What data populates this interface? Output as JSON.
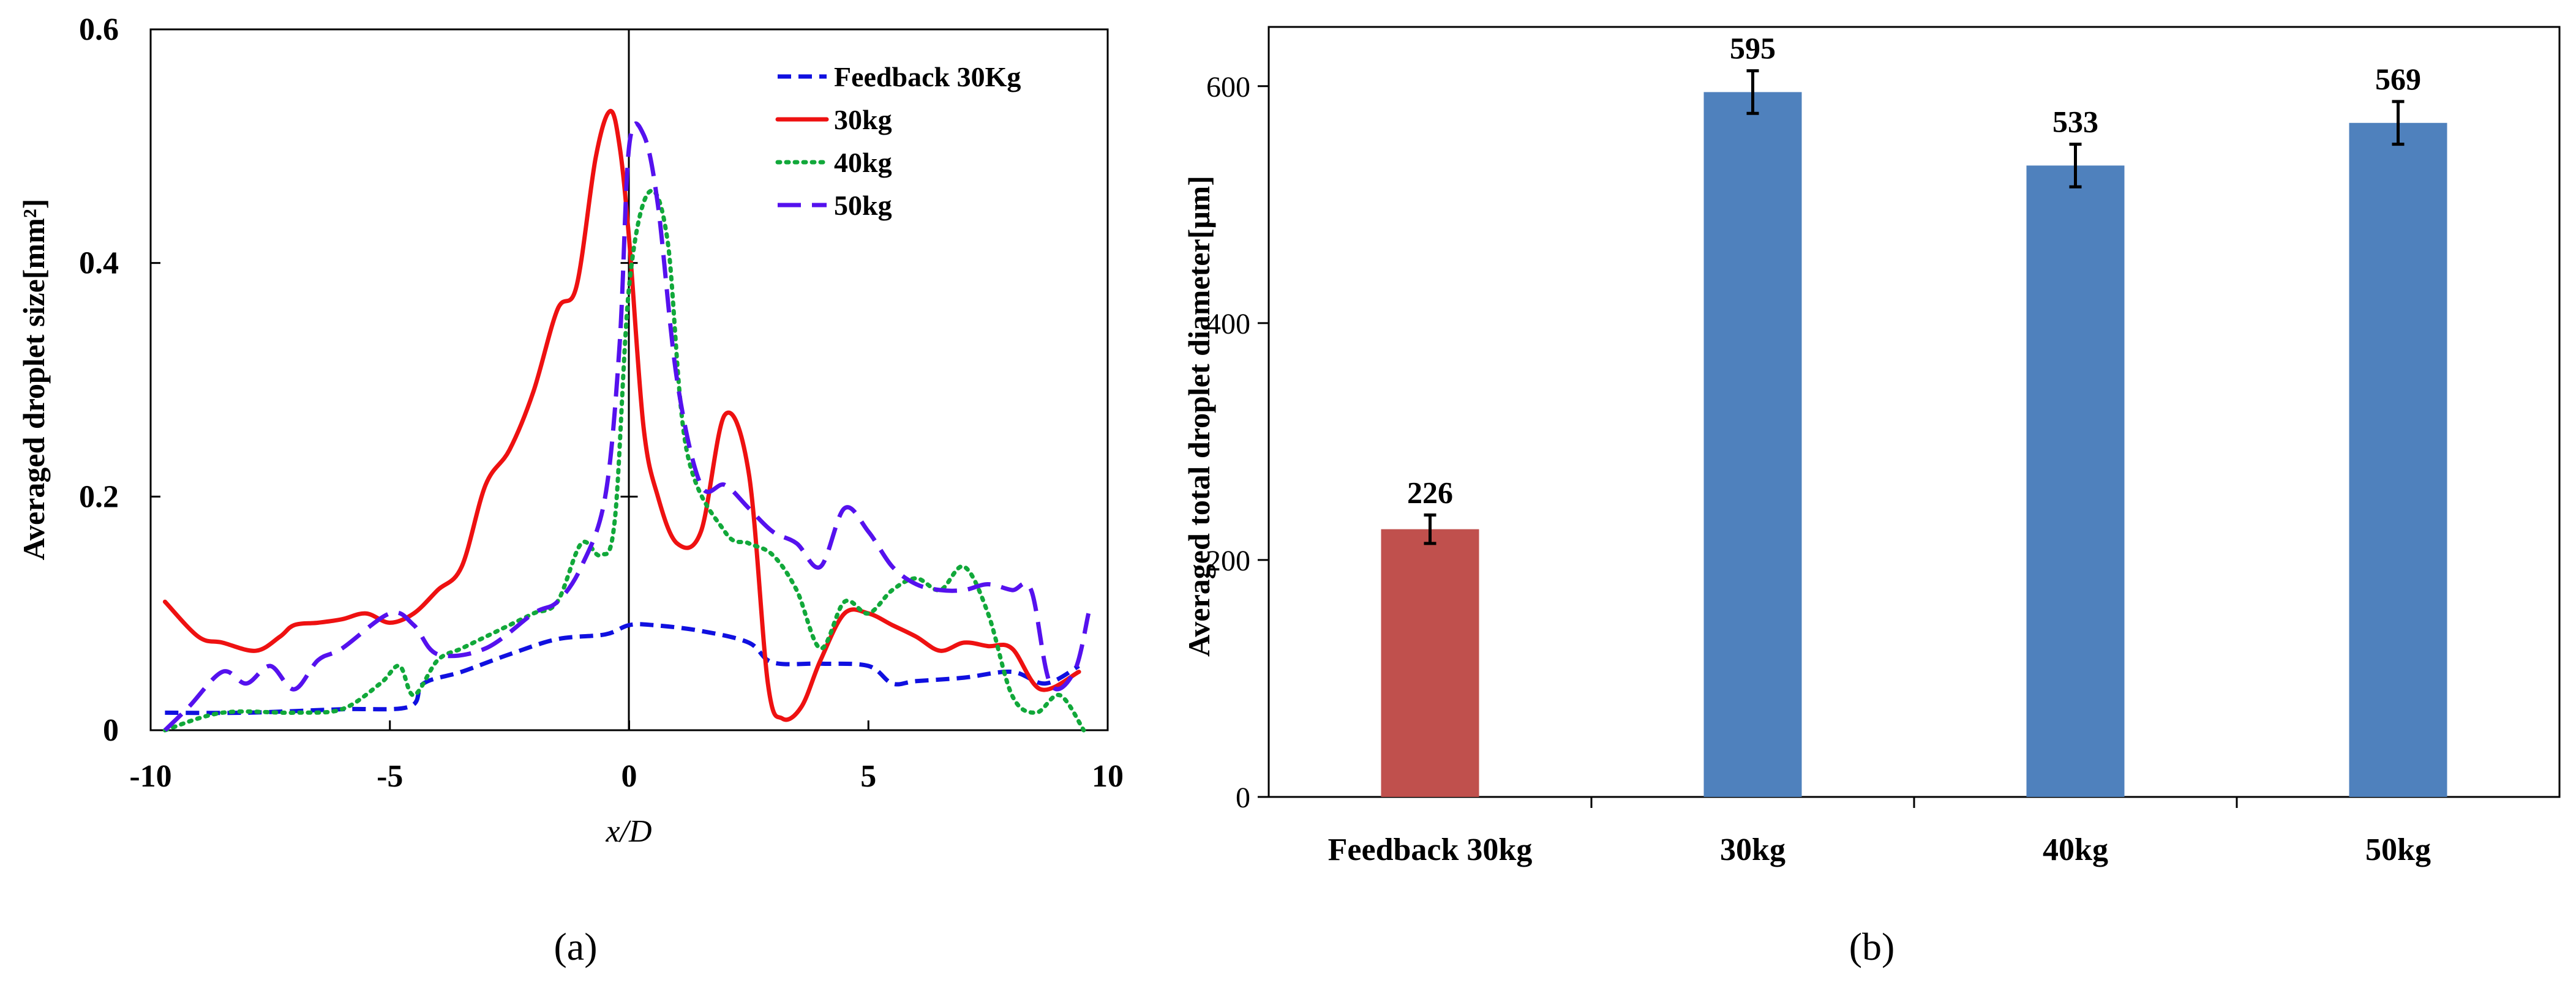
{
  "panels": {
    "a": {
      "caption": "(a)"
    },
    "b": {
      "caption": "(b)"
    }
  },
  "chart_data": [
    {
      "type": "line",
      "panel": "a",
      "xlabel": "x/D",
      "ylabel": "Averaged droplet size[mm²]",
      "xlim": [
        -10,
        10
      ],
      "ylim": [
        0,
        0.6
      ],
      "xticks": [
        -10,
        -5,
        0,
        5,
        10
      ],
      "yticks": [
        0,
        0.2,
        0.4,
        0.6
      ],
      "ytick_labels": [
        "0",
        "0.2",
        "0.4",
        "0.6"
      ],
      "legend_position": "top-right",
      "series": [
        {
          "name": "Feedback 30Kg",
          "color": "#1010e0",
          "dash": "dash",
          "points": [
            [
              -9.7,
              0.015
            ],
            [
              -8,
              0.015
            ],
            [
              -6,
              0.018
            ],
            [
              -4.6,
              0.02
            ],
            [
              -4.3,
              0.04
            ],
            [
              -3.5,
              0.05
            ],
            [
              -2.5,
              0.065
            ],
            [
              -1.5,
              0.078
            ],
            [
              -0.5,
              0.082
            ],
            [
              0,
              0.09
            ],
            [
              0.5,
              0.09
            ],
            [
              1.5,
              0.085
            ],
            [
              2.5,
              0.075
            ],
            [
              3,
              0.058
            ],
            [
              4,
              0.057
            ],
            [
              5,
              0.055
            ],
            [
              5.5,
              0.04
            ],
            [
              6,
              0.042
            ],
            [
              7,
              0.045
            ],
            [
              8,
              0.05
            ],
            [
              8.7,
              0.04
            ],
            [
              9.4,
              0.055
            ]
          ]
        },
        {
          "name": "30kg",
          "color": "#ee1111",
          "dash": "solid",
          "points": [
            [
              -9.7,
              0.11
            ],
            [
              -9,
              0.08
            ],
            [
              -8.5,
              0.075
            ],
            [
              -7.8,
              0.068
            ],
            [
              -7.3,
              0.08
            ],
            [
              -7,
              0.09
            ],
            [
              -6.5,
              0.092
            ],
            [
              -6,
              0.095
            ],
            [
              -5.5,
              0.1
            ],
            [
              -5,
              0.092
            ],
            [
              -4.5,
              0.1
            ],
            [
              -4,
              0.12
            ],
            [
              -3.5,
              0.14
            ],
            [
              -3,
              0.21
            ],
            [
              -2.5,
              0.24
            ],
            [
              -2,
              0.29
            ],
            [
              -1.5,
              0.36
            ],
            [
              -1.1,
              0.38
            ],
            [
              -0.7,
              0.49
            ],
            [
              -0.4,
              0.53
            ],
            [
              -0.2,
              0.5
            ],
            [
              0,
              0.42
            ],
            [
              0.3,
              0.26
            ],
            [
              0.6,
              0.2
            ],
            [
              1,
              0.16
            ],
            [
              1.5,
              0.17
            ],
            [
              2,
              0.27
            ],
            [
              2.5,
              0.22
            ],
            [
              2.9,
              0.04
            ],
            [
              3.2,
              0.01
            ],
            [
              3.6,
              0.02
            ],
            [
              4,
              0.06
            ],
            [
              4.5,
              0.1
            ],
            [
              5,
              0.1
            ],
            [
              5.5,
              0.09
            ],
            [
              6,
              0.08
            ],
            [
              6.5,
              0.068
            ],
            [
              7,
              0.075
            ],
            [
              7.5,
              0.072
            ],
            [
              8,
              0.07
            ],
            [
              8.6,
              0.035
            ],
            [
              9.4,
              0.05
            ]
          ]
        },
        {
          "name": "40kg",
          "color": "#11a83a",
          "dash": "dot",
          "points": [
            [
              -9.7,
              0
            ],
            [
              -8.5,
              0.015
            ],
            [
              -7,
              0.015
            ],
            [
              -6,
              0.018
            ],
            [
              -5.2,
              0.04
            ],
            [
              -4.8,
              0.055
            ],
            [
              -4.5,
              0.03
            ],
            [
              -4,
              0.06
            ],
            [
              -3.5,
              0.07
            ],
            [
              -3,
              0.08
            ],
            [
              -2.5,
              0.09
            ],
            [
              -2,
              0.1
            ],
            [
              -1.5,
              0.11
            ],
            [
              -1,
              0.16
            ],
            [
              -0.6,
              0.15
            ],
            [
              -0.3,
              0.18
            ],
            [
              0,
              0.38
            ],
            [
              0.4,
              0.46
            ],
            [
              0.8,
              0.42
            ],
            [
              1.2,
              0.24
            ],
            [
              2,
              0.17
            ],
            [
              2.5,
              0.16
            ],
            [
              3,
              0.15
            ],
            [
              3.5,
              0.12
            ],
            [
              4,
              0.07
            ],
            [
              4.5,
              0.11
            ],
            [
              5,
              0.1
            ],
            [
              5.5,
              0.12
            ],
            [
              6,
              0.13
            ],
            [
              6.5,
              0.12
            ],
            [
              7,
              0.14
            ],
            [
              7.5,
              0.1
            ],
            [
              8,
              0.03
            ],
            [
              8.5,
              0.015
            ],
            [
              9,
              0.03
            ],
            [
              9.5,
              0
            ]
          ]
        },
        {
          "name": "50kg",
          "color": "#5511ee",
          "dash": "longdash",
          "points": [
            [
              -9.7,
              0
            ],
            [
              -9.2,
              0.02
            ],
            [
              -8.5,
              0.05
            ],
            [
              -8,
              0.04
            ],
            [
              -7.5,
              0.055
            ],
            [
              -7,
              0.035
            ],
            [
              -6.5,
              0.06
            ],
            [
              -6,
              0.07
            ],
            [
              -5,
              0.1
            ],
            [
              -4.5,
              0.09
            ],
            [
              -4,
              0.065
            ],
            [
              -3,
              0.07
            ],
            [
              -2,
              0.1
            ],
            [
              -1.5,
              0.11
            ],
            [
              -1,
              0.14
            ],
            [
              -0.5,
              0.2
            ],
            [
              -0.2,
              0.33
            ],
            [
              0,
              0.5
            ],
            [
              0.3,
              0.51
            ],
            [
              0.6,
              0.45
            ],
            [
              1,
              0.3
            ],
            [
              1.5,
              0.21
            ],
            [
              2,
              0.21
            ],
            [
              2.5,
              0.19
            ],
            [
              3,
              0.17
            ],
            [
              3.5,
              0.16
            ],
            [
              4,
              0.14
            ],
            [
              4.5,
              0.19
            ],
            [
              5,
              0.17
            ],
            [
              5.5,
              0.14
            ],
            [
              6,
              0.125
            ],
            [
              6.5,
              0.12
            ],
            [
              7,
              0.12
            ],
            [
              7.5,
              0.125
            ],
            [
              8,
              0.12
            ],
            [
              8.4,
              0.12
            ],
            [
              8.8,
              0.04
            ],
            [
              9.3,
              0.05
            ],
            [
              9.6,
              0.1
            ]
          ]
        }
      ]
    },
    {
      "type": "bar",
      "panel": "b",
      "xlabel": "",
      "ylabel": "Averaged total droplet diameter[μm]",
      "ylim": [
        0,
        650
      ],
      "yticks": [
        0,
        200,
        400,
        600
      ],
      "categories": [
        "Feedback 30kg",
        "30kg",
        "40kg",
        "50kg"
      ],
      "values": [
        226,
        595,
        533,
        569
      ],
      "data_labels": [
        "226",
        "595",
        "533",
        "569"
      ],
      "errors": [
        12,
        18,
        18,
        18
      ],
      "colors": [
        "#c0504d",
        "#4f81bd",
        "#4f81bd",
        "#4f81bd"
      ]
    }
  ]
}
